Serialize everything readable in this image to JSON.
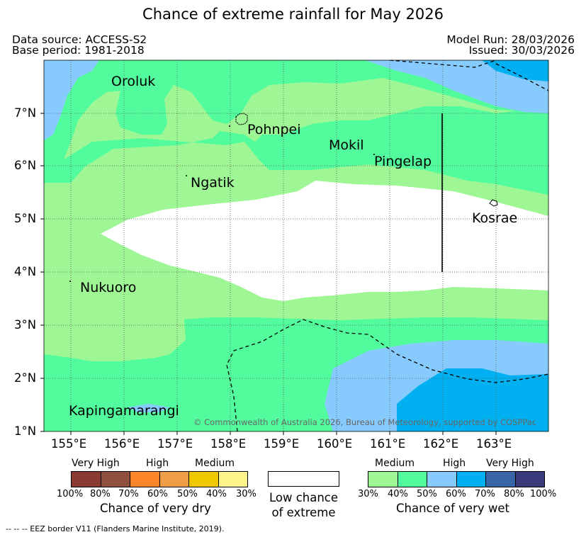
{
  "title": "Chance of extreme rainfall for May 2026",
  "meta": {
    "data_source": "Data source: ACCESS-S2",
    "base_period": "Base period: 1981-2018",
    "model_run": "Model Run: 28/03/2026",
    "issued": "Issued: 30/03/2026"
  },
  "map": {
    "lat_labels": [
      "7°N",
      "6°N",
      "5°N",
      "4°N",
      "3°N",
      "2°N",
      "1°N"
    ],
    "lon_labels": [
      "155°E",
      "156°E",
      "157°E",
      "158°E",
      "159°E",
      "160°E",
      "161°E",
      "162°E",
      "163°E"
    ],
    "places": [
      "Oroluk",
      "Pohnpei",
      "Mokil",
      "Pingelap",
      "Ngatik",
      "Kosrae",
      "Nukuoro",
      "Kapingamarangi"
    ],
    "copyright": "© Commonwealth of Australia 2026, Bureau of Meteorology, supported by COSPPac"
  },
  "legend_dry": {
    "categories": [
      "Very High",
      "High",
      "Medium"
    ],
    "ticks": [
      "100%",
      "80%",
      "70%",
      "60%",
      "50%",
      "40%",
      "30%"
    ],
    "colors": [
      "#8b3a32",
      "#8f5040",
      "#fe8528",
      "#f09d48",
      "#f0c800",
      "#fdf58c"
    ],
    "title": "Chance of very dry"
  },
  "legend_low": {
    "line1": "Low chance",
    "line2": "of extreme"
  },
  "legend_wet": {
    "categories": [
      "Medium",
      "High",
      "Very High"
    ],
    "ticks": [
      "30%",
      "40%",
      "50%",
      "60%",
      "70%",
      "80%",
      "100%"
    ],
    "colors": [
      "#9ef694",
      "#52fc9c",
      "#87cafd",
      "#00b0f0",
      "#3966a8",
      "#3b3a7a"
    ],
    "title": "Chance of very wet"
  },
  "footnote": "-- -- -- EEZ border V11 (Flanders Marine Institute, 2019).",
  "palette": {
    "medium_wet": "#9ef694",
    "medium_wet_2": "#52fc9c",
    "high_wet": "#87cafd",
    "high_wet_2": "#00b0f0"
  }
}
